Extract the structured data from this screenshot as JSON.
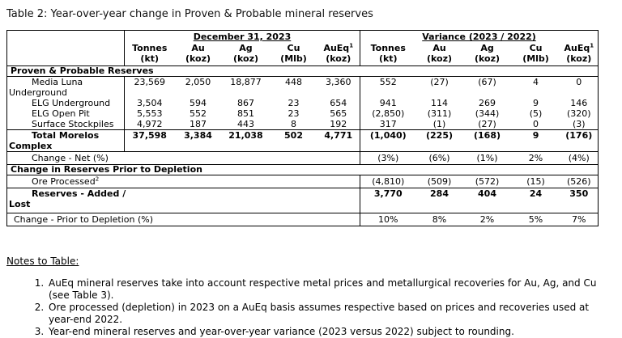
{
  "title": "Table 2: Year-over-year change in Proven & Probable mineral reserves",
  "table": {
    "group_headers": {
      "period": "December 31, 2023",
      "variance": "Variance (2023 / 2022)"
    },
    "columns": [
      {
        "label": "Tonnes",
        "sup": "",
        "unit": "(kt)"
      },
      {
        "label": "Au",
        "sup": "",
        "unit": "(koz)"
      },
      {
        "label": "Ag",
        "sup": "",
        "unit": "(koz)"
      },
      {
        "label": "Cu",
        "sup": "",
        "unit": "(Mlb)"
      },
      {
        "label": "AuEq",
        "sup": "1",
        "unit": "(koz)"
      }
    ],
    "rows": [
      {
        "kind": "section",
        "label": "Proven & Probable Reserves"
      },
      {
        "kind": "detail",
        "label": "Media Luna\nUnderground",
        "dec": [
          "23,569",
          "2,050",
          "18,877",
          "448",
          "3,360"
        ],
        "var": [
          "552",
          "(27)",
          "(67)",
          "4",
          "0"
        ]
      },
      {
        "kind": "detail",
        "label": "ELG Underground",
        "dec": [
          "3,504",
          "594",
          "867",
          "23",
          "654"
        ],
        "var": [
          "941",
          "114",
          "269",
          "9",
          "146"
        ]
      },
      {
        "kind": "detail",
        "label": "ELG Open Pit",
        "dec": [
          "5,553",
          "552",
          "851",
          "23",
          "565"
        ],
        "var": [
          "(2,850)",
          "(311)",
          "(344)",
          "(5)",
          "(320)"
        ]
      },
      {
        "kind": "detail",
        "label": "Surface Stockpiles",
        "dec": [
          "4,972",
          "187",
          "443",
          "8",
          "192"
        ],
        "var": [
          "317",
          "(1)",
          "(27)",
          "0",
          "(3)"
        ]
      },
      {
        "kind": "total",
        "label": "Total Morelos\nComplex",
        "dec": [
          "37,598",
          "3,384",
          "21,038",
          "502",
          "4,771"
        ],
        "var": [
          "(1,040)",
          "(225)",
          "(168)",
          "9",
          "(176)"
        ]
      },
      {
        "kind": "change",
        "label": "Change - Net (%)",
        "var": [
          "(3%)",
          "(6%)",
          "(1%)",
          "2%",
          "(4%)"
        ]
      },
      {
        "kind": "section",
        "label": "Change in Reserves Prior to Depletion"
      },
      {
        "kind": "change",
        "label": "Ore Processed",
        "sup": "2",
        "var": [
          "(4,810)",
          "(509)",
          "(572)",
          "(15)",
          "(526)"
        ]
      },
      {
        "kind": "added",
        "label": "Reserves - Added /\nLost",
        "var": [
          "3,770",
          "284",
          "404",
          "24",
          "350"
        ]
      },
      {
        "kind": "change-small",
        "label": "Change - Prior to Depletion (%)",
        "var": [
          "10%",
          "8%",
          "2%",
          "5%",
          "7%"
        ]
      }
    ]
  },
  "notes": {
    "heading": "Notes to Table:",
    "items": [
      "AuEq mineral reserves take into account respective metal prices and metallurgical recoveries for Au, Ag, and Cu (see Table 3).",
      "Ore processed (depletion) in 2023 on a AuEq basis assumes respective based on prices and recoveries used at year-end 2022.",
      "Year-end mineral reserves and year-over-year variance (2023 versus 2022) subject to rounding."
    ]
  }
}
